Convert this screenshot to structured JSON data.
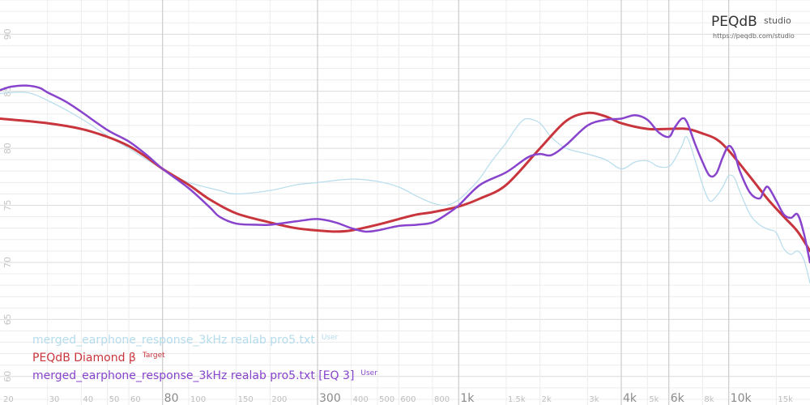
{
  "brand": {
    "name": "PEQdB",
    "suffix": "studio",
    "url": "https://peqdb.com/studio"
  },
  "colors": {
    "background": "#ffffff",
    "grid": "#ececec",
    "grid_major": "#cfcfcf"
  },
  "chart_data": {
    "type": "line",
    "x_scale": "log",
    "xlim": [
      20,
      20000
    ],
    "ylim": [
      57.5,
      93
    ],
    "y_ticks": [
      65,
      70,
      75,
      80,
      85,
      90
    ],
    "y_ticks_extra": [
      60
    ],
    "x_ticks": [
      {
        "value": 30,
        "label": "30"
      },
      {
        "value": 40,
        "label": "40"
      },
      {
        "value": 50,
        "label": "50"
      },
      {
        "value": 60,
        "label": "60"
      },
      {
        "value": 80,
        "label": "80"
      },
      {
        "value": 100,
        "label": "100"
      },
      {
        "value": 150,
        "label": "150"
      },
      {
        "value": 200,
        "label": "200"
      },
      {
        "value": 300,
        "label": "300"
      },
      {
        "value": 400,
        "label": "400"
      },
      {
        "value": 500,
        "label": "500"
      },
      {
        "value": 600,
        "label": "600"
      },
      {
        "value": 800,
        "label": "800"
      },
      {
        "value": 1000,
        "label": "1k"
      },
      {
        "value": 1500,
        "label": "1.5k"
      },
      {
        "value": 2000,
        "label": "2k"
      },
      {
        "value": 3000,
        "label": "3k"
      },
      {
        "value": 4000,
        "label": "4k"
      },
      {
        "value": 5000,
        "label": "5k"
      },
      {
        "value": 6000,
        "label": "6k"
      },
      {
        "value": 8000,
        "label": "8k"
      },
      {
        "value": 10000,
        "label": "10k"
      },
      {
        "value": 15000,
        "label": "15k"
      }
    ],
    "x_edge_label": "20",
    "major_x": [
      80,
      300,
      1000,
      4000,
      6000,
      10000
    ],
    "grid": true,
    "legend_position": "bottom-left",
    "series": [
      {
        "name": "merged_earphone_response_3kHz realab pro5.txt",
        "tag": "User",
        "color": "#b5dced",
        "width": 1.2,
        "points": [
          [
            20,
            84.8
          ],
          [
            25,
            84.9
          ],
          [
            30,
            84.2
          ],
          [
            40,
            82.6
          ],
          [
            50,
            81.1
          ],
          [
            60,
            80.0
          ],
          [
            70,
            79.0
          ],
          [
            80,
            78.2
          ],
          [
            90,
            77.5
          ],
          [
            100,
            77.0
          ],
          [
            130,
            76.3
          ],
          [
            150,
            76.0
          ],
          [
            200,
            76.3
          ],
          [
            250,
            76.8
          ],
          [
            300,
            77.0
          ],
          [
            400,
            77.3
          ],
          [
            500,
            77.1
          ],
          [
            600,
            76.6
          ],
          [
            700,
            75.8
          ],
          [
            800,
            75.2
          ],
          [
            900,
            75.0
          ],
          [
            1000,
            75.5
          ],
          [
            1100,
            76.4
          ],
          [
            1200,
            77.4
          ],
          [
            1300,
            78.6
          ],
          [
            1400,
            79.6
          ],
          [
            1500,
            80.5
          ],
          [
            1600,
            81.5
          ],
          [
            1700,
            82.3
          ],
          [
            1800,
            82.6
          ],
          [
            2000,
            82.2
          ],
          [
            2200,
            81.0
          ],
          [
            2500,
            80.0
          ],
          [
            3000,
            79.5
          ],
          [
            3500,
            79.0
          ],
          [
            4000,
            78.2
          ],
          [
            4500,
            78.8
          ],
          [
            5000,
            78.9
          ],
          [
            5500,
            78.4
          ],
          [
            6000,
            78.4
          ],
          [
            6300,
            79.0
          ],
          [
            6700,
            80.2
          ],
          [
            7000,
            81.0
          ],
          [
            7500,
            79.0
          ],
          [
            8000,
            76.8
          ],
          [
            8500,
            75.4
          ],
          [
            9000,
            75.8
          ],
          [
            9500,
            76.6
          ],
          [
            10000,
            77.6
          ],
          [
            10500,
            77.4
          ],
          [
            11000,
            76.2
          ],
          [
            12000,
            74.2
          ],
          [
            13000,
            73.3
          ],
          [
            14000,
            72.9
          ],
          [
            15000,
            72.6
          ],
          [
            16000,
            71.2
          ],
          [
            17000,
            70.7
          ],
          [
            18000,
            71.0
          ],
          [
            19000,
            70.2
          ],
          [
            20000,
            68.2
          ]
        ]
      },
      {
        "name": "PEQdB Diamond β",
        "tag": "Target",
        "color": "#c9353d",
        "width": 3,
        "points": [
          [
            20,
            82.6
          ],
          [
            30,
            82.2
          ],
          [
            40,
            81.7
          ],
          [
            50,
            81.0
          ],
          [
            60,
            80.2
          ],
          [
            70,
            79.2
          ],
          [
            80,
            78.2
          ],
          [
            100,
            76.8
          ],
          [
            120,
            75.5
          ],
          [
            150,
            74.3
          ],
          [
            200,
            73.5
          ],
          [
            250,
            73.0
          ],
          [
            300,
            72.8
          ],
          [
            350,
            72.7
          ],
          [
            400,
            72.8
          ],
          [
            500,
            73.3
          ],
          [
            600,
            73.8
          ],
          [
            700,
            74.2
          ],
          [
            800,
            74.4
          ],
          [
            1000,
            74.9
          ],
          [
            1200,
            75.6
          ],
          [
            1500,
            76.8
          ],
          [
            2000,
            80.0
          ],
          [
            2500,
            82.4
          ],
          [
            3000,
            83.1
          ],
          [
            3500,
            82.8
          ],
          [
            4000,
            82.2
          ],
          [
            5000,
            81.7
          ],
          [
            6000,
            81.7
          ],
          [
            7000,
            81.7
          ],
          [
            8000,
            81.3
          ],
          [
            9000,
            80.8
          ],
          [
            10000,
            79.8
          ],
          [
            12000,
            77.5
          ],
          [
            14000,
            75.5
          ],
          [
            16000,
            74.0
          ],
          [
            18000,
            72.7
          ],
          [
            20000,
            71.0
          ]
        ]
      },
      {
        "name": "merged_earphone_response_3kHz realab pro5.txt [EQ 3]",
        "tag": "User",
        "color": "#8844cc",
        "width": 2.5,
        "points": [
          [
            20,
            85.1
          ],
          [
            22,
            85.4
          ],
          [
            25,
            85.5
          ],
          [
            28,
            85.3
          ],
          [
            30,
            84.9
          ],
          [
            35,
            84.1
          ],
          [
            40,
            83.2
          ],
          [
            50,
            81.6
          ],
          [
            60,
            80.6
          ],
          [
            70,
            79.4
          ],
          [
            80,
            78.2
          ],
          [
            100,
            76.5
          ],
          [
            120,
            74.8
          ],
          [
            130,
            74.0
          ],
          [
            150,
            73.4
          ],
          [
            180,
            73.3
          ],
          [
            200,
            73.3
          ],
          [
            250,
            73.6
          ],
          [
            300,
            73.8
          ],
          [
            350,
            73.5
          ],
          [
            400,
            73.0
          ],
          [
            450,
            72.7
          ],
          [
            500,
            72.8
          ],
          [
            600,
            73.2
          ],
          [
            700,
            73.3
          ],
          [
            800,
            73.5
          ],
          [
            900,
            74.2
          ],
          [
            1000,
            75.0
          ],
          [
            1200,
            76.8
          ],
          [
            1500,
            77.9
          ],
          [
            1800,
            79.2
          ],
          [
            2000,
            79.5
          ],
          [
            2200,
            79.4
          ],
          [
            2500,
            80.3
          ],
          [
            3000,
            82.0
          ],
          [
            3500,
            82.5
          ],
          [
            4000,
            82.6
          ],
          [
            4500,
            82.9
          ],
          [
            5000,
            82.5
          ],
          [
            5500,
            81.4
          ],
          [
            6000,
            81.0
          ],
          [
            6300,
            81.8
          ],
          [
            6700,
            82.6
          ],
          [
            7000,
            82.3
          ],
          [
            7500,
            80.4
          ],
          [
            8000,
            78.8
          ],
          [
            8500,
            77.6
          ],
          [
            9000,
            77.8
          ],
          [
            9500,
            79.2
          ],
          [
            10000,
            80.2
          ],
          [
            10500,
            79.6
          ],
          [
            11000,
            78.0
          ],
          [
            12000,
            76.1
          ],
          [
            13000,
            75.6
          ],
          [
            13500,
            76.3
          ],
          [
            14000,
            76.6
          ],
          [
            15000,
            75.4
          ],
          [
            16000,
            74.2
          ],
          [
            17000,
            73.9
          ],
          [
            18000,
            74.2
          ],
          [
            19000,
            72.5
          ],
          [
            20000,
            70.0
          ]
        ]
      }
    ]
  }
}
